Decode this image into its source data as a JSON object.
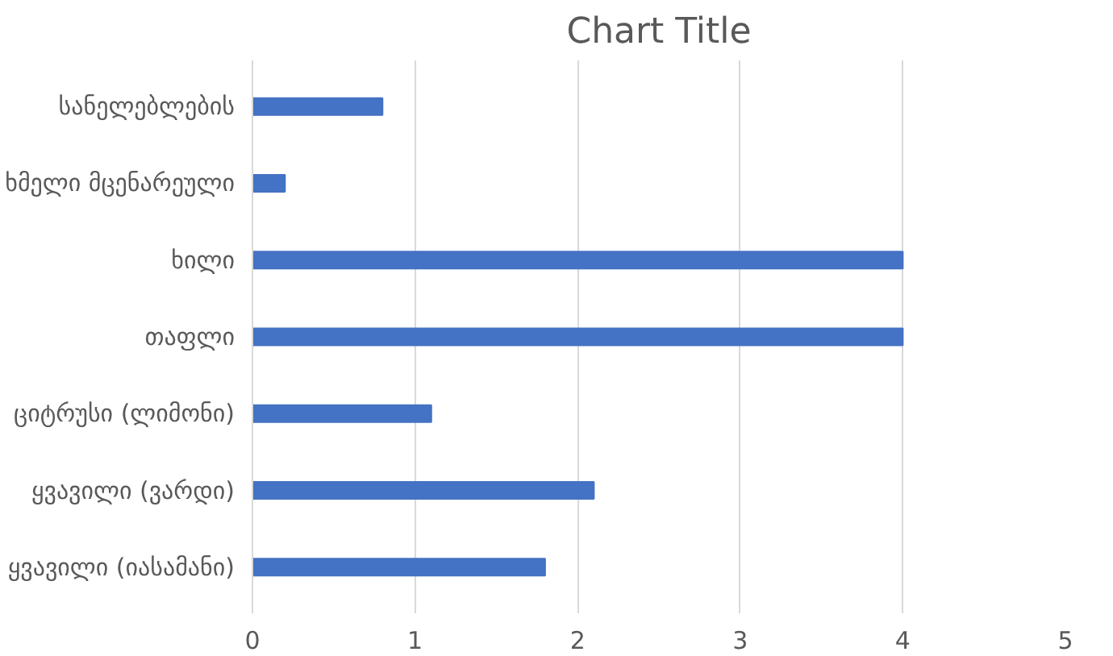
{
  "chart_data": {
    "type": "bar",
    "orientation": "horizontal",
    "title": "Chart Title",
    "categories": [
      "სანელებლების",
      "ხმელი მცენარეული",
      "ხილი",
      "თაფლი",
      "ციტრუსი (ლიმონი)",
      "ყვავილი (ვარდი)",
      "ყვავილი (იასამანი)"
    ],
    "values": [
      0.8,
      0.2,
      4,
      4,
      1.1,
      2.1,
      1.8
    ],
    "color": "#4472c4",
    "xlim": [
      0,
      5
    ],
    "xticks": [
      0,
      1,
      2,
      3,
      4,
      5
    ],
    "grid": "x"
  }
}
